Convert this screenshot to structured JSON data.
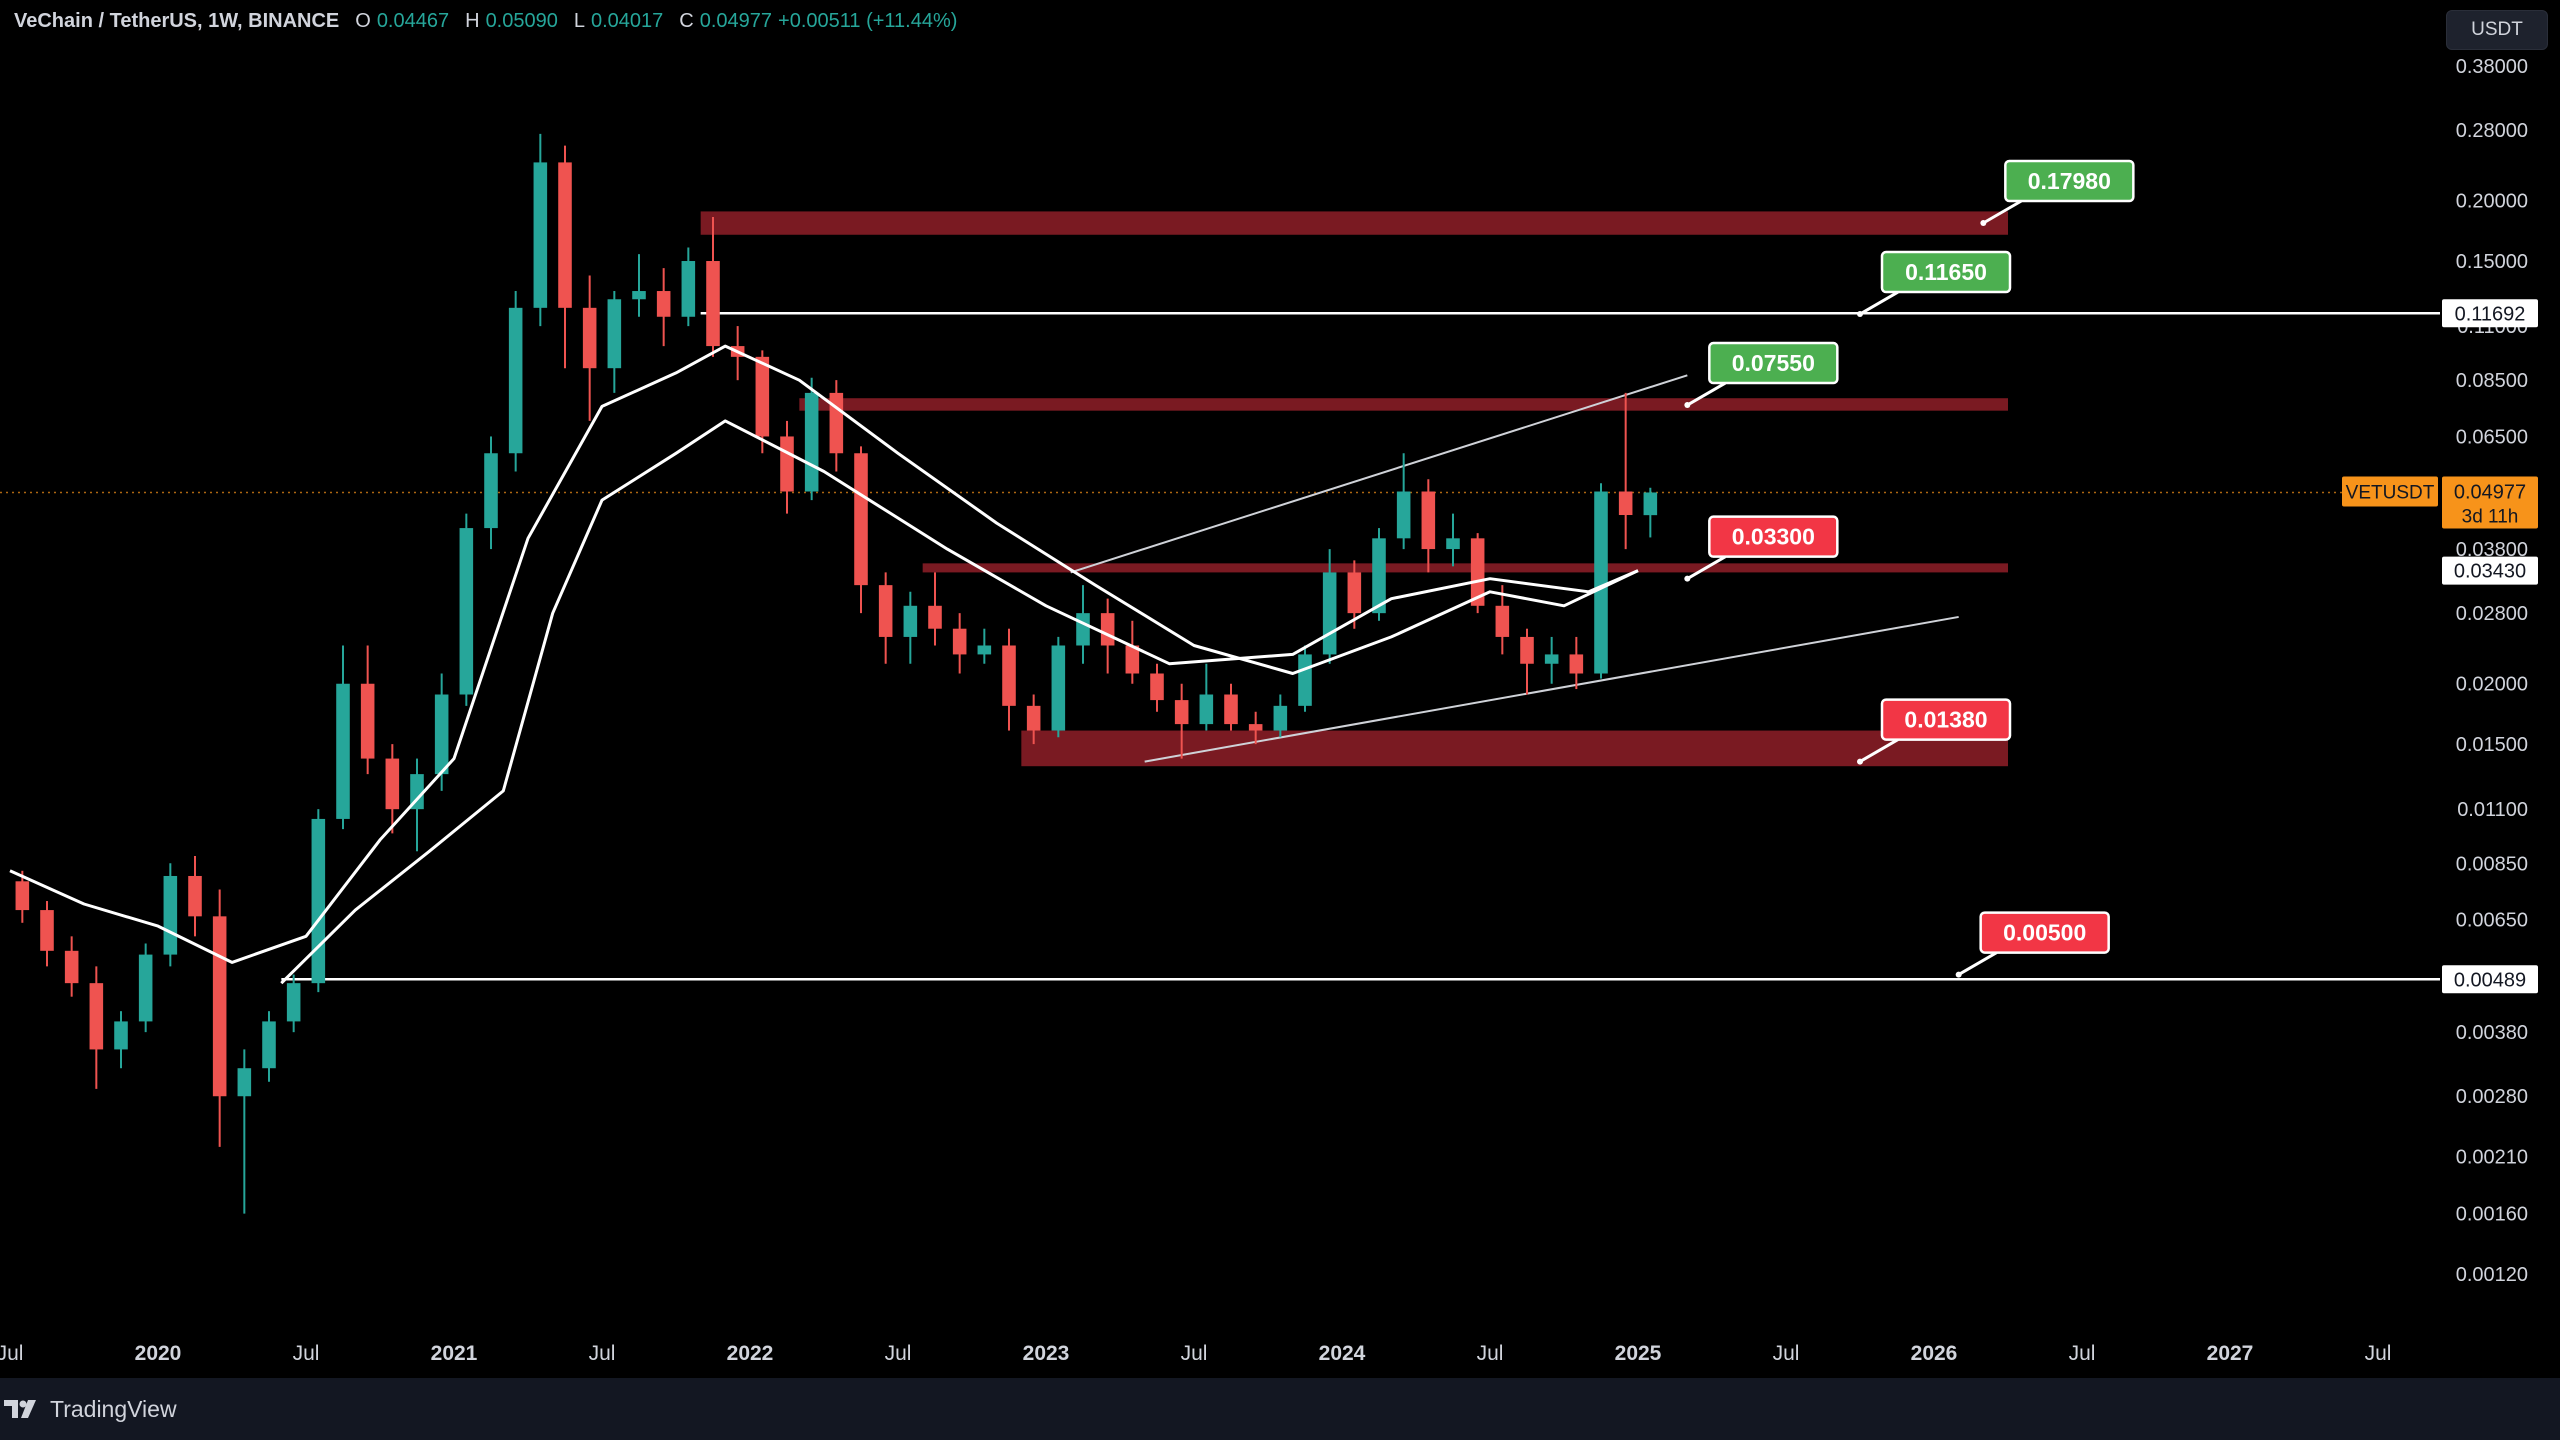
{
  "header": {
    "symbol": "VeChain / TetherUS, 1W, BINANCE",
    "open_label": "O",
    "open": "0.04467",
    "high_label": "H",
    "high": "0.05090",
    "low_label": "L",
    "low": "0.04017",
    "close_label": "C",
    "close": "0.04977",
    "change": "+0.00511 (+11.44%)"
  },
  "currency_button": "USDT",
  "branding": {
    "logo_text": "TradingView",
    "logo_icon": "tradingview-logo-icon"
  },
  "colors": {
    "background": "#000000",
    "zone_fill": "#7a1a22",
    "up_candle": "#26a69a",
    "down_candle": "#ef5350",
    "label_green": "#4caf50",
    "label_red": "#f23645",
    "price_tag_orange": "#f7931a"
  },
  "chart_data": {
    "type": "candlestick",
    "title": "VeChain / TetherUS, 1W, BINANCE",
    "scale": "log",
    "ylim": [
      0.001,
      0.4
    ],
    "y_ticks": [
      "0.38000",
      "0.28000",
      "0.20000",
      "0.15000",
      "0.11000",
      "0.08500",
      "0.06500",
      "0.03800",
      "0.02800",
      "0.02000",
      "0.01500",
      "0.01100",
      "0.00850",
      "0.00650",
      "0.00380",
      "0.00280",
      "0.00210",
      "0.00160",
      "0.00120"
    ],
    "x_ticks": [
      "Jul",
      "2020",
      "Jul",
      "2021",
      "Jul",
      "2022",
      "Jul",
      "2023",
      "Jul",
      "2024",
      "Jul",
      "2025",
      "Jul",
      "2026",
      "Jul",
      "2027",
      "Jul"
    ],
    "grid": false,
    "candles": [
      {
        "date": "2019-07",
        "open": 0.0078,
        "high": 0.0082,
        "low": 0.0064,
        "close": 0.0068
      },
      {
        "date": "2019-08",
        "open": 0.0068,
        "high": 0.0071,
        "low": 0.0052,
        "close": 0.0056
      },
      {
        "date": "2019-09",
        "open": 0.0056,
        "high": 0.006,
        "low": 0.0045,
        "close": 0.0048
      },
      {
        "date": "2019-10",
        "open": 0.0048,
        "high": 0.0052,
        "low": 0.0029,
        "close": 0.0035
      },
      {
        "date": "2019-11",
        "open": 0.0035,
        "high": 0.0042,
        "low": 0.0032,
        "close": 0.004
      },
      {
        "date": "2019-12",
        "open": 0.004,
        "high": 0.0058,
        "low": 0.0038,
        "close": 0.0055
      },
      {
        "date": "2020-01",
        "open": 0.0055,
        "high": 0.0085,
        "low": 0.0052,
        "close": 0.008
      },
      {
        "date": "2020-02",
        "open": 0.008,
        "high": 0.0088,
        "low": 0.006,
        "close": 0.0066
      },
      {
        "date": "2020-03",
        "open": 0.0066,
        "high": 0.0075,
        "low": 0.0022,
        "close": 0.0028
      },
      {
        "date": "2020-04",
        "open": 0.0028,
        "high": 0.0035,
        "low": 0.0016,
        "close": 0.0032
      },
      {
        "date": "2020-05",
        "open": 0.0032,
        "high": 0.0042,
        "low": 0.003,
        "close": 0.004
      },
      {
        "date": "2020-06",
        "open": 0.004,
        "high": 0.005,
        "low": 0.0038,
        "close": 0.0048
      },
      {
        "date": "2020-07",
        "open": 0.0048,
        "high": 0.011,
        "low": 0.0046,
        "close": 0.0105
      },
      {
        "date": "2020-08",
        "open": 0.0105,
        "high": 0.024,
        "low": 0.01,
        "close": 0.02
      },
      {
        "date": "2020-09",
        "open": 0.02,
        "high": 0.024,
        "low": 0.013,
        "close": 0.014
      },
      {
        "date": "2020-10",
        "open": 0.014,
        "high": 0.015,
        "low": 0.0098,
        "close": 0.011
      },
      {
        "date": "2020-11",
        "open": 0.011,
        "high": 0.014,
        "low": 0.009,
        "close": 0.013
      },
      {
        "date": "2020-12",
        "open": 0.013,
        "high": 0.021,
        "low": 0.012,
        "close": 0.019
      },
      {
        "date": "2021-01",
        "open": 0.019,
        "high": 0.045,
        "low": 0.018,
        "close": 0.042
      },
      {
        "date": "2021-02",
        "open": 0.042,
        "high": 0.065,
        "low": 0.038,
        "close": 0.06
      },
      {
        "date": "2021-03",
        "open": 0.06,
        "high": 0.13,
        "low": 0.055,
        "close": 0.12
      },
      {
        "date": "2021-04",
        "open": 0.12,
        "high": 0.275,
        "low": 0.11,
        "close": 0.24
      },
      {
        "date": "2021-05",
        "open": 0.24,
        "high": 0.26,
        "low": 0.09,
        "close": 0.12
      },
      {
        "date": "2021-06",
        "open": 0.12,
        "high": 0.14,
        "low": 0.07,
        "close": 0.09
      },
      {
        "date": "2021-07",
        "open": 0.09,
        "high": 0.13,
        "low": 0.08,
        "close": 0.125
      },
      {
        "date": "2021-08",
        "open": 0.125,
        "high": 0.155,
        "low": 0.115,
        "close": 0.13
      },
      {
        "date": "2021-09",
        "open": 0.13,
        "high": 0.145,
        "low": 0.1,
        "close": 0.115
      },
      {
        "date": "2021-10",
        "open": 0.115,
        "high": 0.16,
        "low": 0.11,
        "close": 0.15
      },
      {
        "date": "2021-11",
        "open": 0.15,
        "high": 0.185,
        "low": 0.095,
        "close": 0.1
      },
      {
        "date": "2021-12",
        "open": 0.1,
        "high": 0.11,
        "low": 0.085,
        "close": 0.095
      },
      {
        "date": "2022-01",
        "open": 0.095,
        "high": 0.098,
        "low": 0.06,
        "close": 0.065
      },
      {
        "date": "2022-02",
        "open": 0.065,
        "high": 0.07,
        "low": 0.045,
        "close": 0.05
      },
      {
        "date": "2022-03",
        "open": 0.05,
        "high": 0.086,
        "low": 0.048,
        "close": 0.08
      },
      {
        "date": "2022-04",
        "open": 0.08,
        "high": 0.085,
        "low": 0.055,
        "close": 0.06
      },
      {
        "date": "2022-05",
        "open": 0.06,
        "high": 0.062,
        "low": 0.028,
        "close": 0.032
      },
      {
        "date": "2022-06",
        "open": 0.032,
        "high": 0.034,
        "low": 0.022,
        "close": 0.025
      },
      {
        "date": "2022-07",
        "open": 0.025,
        "high": 0.031,
        "low": 0.022,
        "close": 0.029
      },
      {
        "date": "2022-08",
        "open": 0.029,
        "high": 0.034,
        "low": 0.024,
        "close": 0.026
      },
      {
        "date": "2022-09",
        "open": 0.026,
        "high": 0.028,
        "low": 0.021,
        "close": 0.023
      },
      {
        "date": "2022-10",
        "open": 0.023,
        "high": 0.026,
        "low": 0.022,
        "close": 0.024
      },
      {
        "date": "2022-11",
        "open": 0.024,
        "high": 0.026,
        "low": 0.016,
        "close": 0.018
      },
      {
        "date": "2022-12",
        "open": 0.018,
        "high": 0.019,
        "low": 0.015,
        "close": 0.016
      },
      {
        "date": "2023-01",
        "open": 0.016,
        "high": 0.025,
        "low": 0.0155,
        "close": 0.024
      },
      {
        "date": "2023-02",
        "open": 0.024,
        "high": 0.032,
        "low": 0.022,
        "close": 0.028
      },
      {
        "date": "2023-03",
        "open": 0.028,
        "high": 0.03,
        "low": 0.021,
        "close": 0.024
      },
      {
        "date": "2023-04",
        "open": 0.024,
        "high": 0.027,
        "low": 0.02,
        "close": 0.021
      },
      {
        "date": "2023-05",
        "open": 0.021,
        "high": 0.022,
        "low": 0.0175,
        "close": 0.0185
      },
      {
        "date": "2023-06",
        "open": 0.0185,
        "high": 0.02,
        "low": 0.014,
        "close": 0.0165
      },
      {
        "date": "2023-07",
        "open": 0.0165,
        "high": 0.022,
        "low": 0.016,
        "close": 0.019
      },
      {
        "date": "2023-08",
        "open": 0.019,
        "high": 0.02,
        "low": 0.016,
        "close": 0.0165
      },
      {
        "date": "2023-09",
        "open": 0.0165,
        "high": 0.0175,
        "low": 0.015,
        "close": 0.016
      },
      {
        "date": "2023-10",
        "open": 0.016,
        "high": 0.019,
        "low": 0.0155,
        "close": 0.018
      },
      {
        "date": "2023-11",
        "open": 0.018,
        "high": 0.024,
        "low": 0.0175,
        "close": 0.023
      },
      {
        "date": "2023-12",
        "open": 0.023,
        "high": 0.038,
        "low": 0.022,
        "close": 0.034
      },
      {
        "date": "2024-01",
        "open": 0.034,
        "high": 0.036,
        "low": 0.026,
        "close": 0.028
      },
      {
        "date": "2024-02",
        "open": 0.028,
        "high": 0.042,
        "low": 0.027,
        "close": 0.04
      },
      {
        "date": "2024-03",
        "open": 0.04,
        "high": 0.06,
        "low": 0.038,
        "close": 0.05
      },
      {
        "date": "2024-04",
        "open": 0.05,
        "high": 0.053,
        "low": 0.034,
        "close": 0.038
      },
      {
        "date": "2024-05",
        "open": 0.038,
        "high": 0.045,
        "low": 0.035,
        "close": 0.04
      },
      {
        "date": "2024-06",
        "open": 0.04,
        "high": 0.041,
        "low": 0.028,
        "close": 0.029
      },
      {
        "date": "2024-07",
        "open": 0.029,
        "high": 0.032,
        "low": 0.023,
        "close": 0.025
      },
      {
        "date": "2024-08",
        "open": 0.025,
        "high": 0.026,
        "low": 0.019,
        "close": 0.022
      },
      {
        "date": "2024-09",
        "open": 0.022,
        "high": 0.025,
        "low": 0.02,
        "close": 0.023
      },
      {
        "date": "2024-10",
        "open": 0.023,
        "high": 0.025,
        "low": 0.0195,
        "close": 0.021
      },
      {
        "date": "2024-11",
        "open": 0.021,
        "high": 0.052,
        "low": 0.0205,
        "close": 0.05
      },
      {
        "date": "2024-12",
        "open": 0.05,
        "high": 0.08,
        "low": 0.038,
        "close": 0.0447
      },
      {
        "date": "2025-01",
        "open": 0.04467,
        "high": 0.0509,
        "low": 0.04017,
        "close": 0.04977
      }
    ],
    "moving_average_1": [
      {
        "date": "2019-07",
        "value": 0.0082
      },
      {
        "date": "2019-10",
        "value": 0.007
      },
      {
        "date": "2020-01",
        "value": 0.0063
      },
      {
        "date": "2020-04",
        "value": 0.0053
      },
      {
        "date": "2020-07",
        "value": 0.006
      },
      {
        "date": "2020-10",
        "value": 0.0095
      },
      {
        "date": "2021-01",
        "value": 0.014
      },
      {
        "date": "2021-04",
        "value": 0.04
      },
      {
        "date": "2021-07",
        "value": 0.075
      },
      {
        "date": "2021-10",
        "value": 0.088
      },
      {
        "date": "2021-12",
        "value": 0.1
      },
      {
        "date": "2022-03",
        "value": 0.085
      },
      {
        "date": "2022-07",
        "value": 0.06
      },
      {
        "date": "2022-11",
        "value": 0.043
      },
      {
        "date": "2023-03",
        "value": 0.032
      },
      {
        "date": "2023-07",
        "value": 0.024
      },
      {
        "date": "2023-11",
        "value": 0.021
      },
      {
        "date": "2024-03",
        "value": 0.025
      },
      {
        "date": "2024-07",
        "value": 0.031
      },
      {
        "date": "2024-10",
        "value": 0.029
      },
      {
        "date": "2025-01",
        "value": 0.0343
      }
    ],
    "moving_average_2": [
      {
        "date": "2020-06",
        "value": 0.0048
      },
      {
        "date": "2020-09",
        "value": 0.0068
      },
      {
        "date": "2020-12",
        "value": 0.009
      },
      {
        "date": "2021-03",
        "value": 0.012
      },
      {
        "date": "2021-05",
        "value": 0.028
      },
      {
        "date": "2021-07",
        "value": 0.048
      },
      {
        "date": "2021-10",
        "value": 0.06
      },
      {
        "date": "2021-12",
        "value": 0.07
      },
      {
        "date": "2022-04",
        "value": 0.055
      },
      {
        "date": "2022-09",
        "value": 0.038
      },
      {
        "date": "2023-01",
        "value": 0.029
      },
      {
        "date": "2023-06",
        "value": 0.022
      },
      {
        "date": "2023-11",
        "value": 0.023
      },
      {
        "date": "2024-03",
        "value": 0.03
      },
      {
        "date": "2024-07",
        "value": 0.033
      },
      {
        "date": "2024-11",
        "value": 0.031
      },
      {
        "date": "2025-01",
        "value": 0.0343
      }
    ],
    "zones": [
      {
        "from": "2021-11",
        "to": "2026-04",
        "low": 0.17,
        "high": 0.19
      },
      {
        "from": "2022-03",
        "to": "2026-04",
        "low": 0.0735,
        "high": 0.078
      },
      {
        "from": "2022-08",
        "to": "2026-04",
        "low": 0.034,
        "high": 0.0355
      },
      {
        "from": "2022-12",
        "to": "2026-04",
        "low": 0.0135,
        "high": 0.016
      }
    ],
    "horizontal_lines": [
      {
        "from": "2021-11",
        "to": "2027-10",
        "value": 0.11692
      },
      {
        "from": "2020-06",
        "to": "2027-10",
        "value": 0.00489
      }
    ],
    "trend_lines": [
      {
        "from": "2023-02",
        "from_value": 0.034,
        "to": "2025-03",
        "to_value": 0.087
      },
      {
        "from": "2023-05",
        "from_value": 0.0138,
        "to": "2026-02",
        "to_value": 0.0275
      }
    ],
    "targets": [
      {
        "label": "0.17980",
        "value": 0.1798,
        "kind": "green",
        "anchor": "2026-03"
      },
      {
        "label": "0.11650",
        "value": 0.1165,
        "kind": "green",
        "anchor": "2025-10"
      },
      {
        "label": "0.07550",
        "value": 0.0755,
        "kind": "green",
        "anchor": "2025-03"
      },
      {
        "label": "0.03300",
        "value": 0.033,
        "kind": "red",
        "anchor": "2025-03"
      },
      {
        "label": "0.01380",
        "value": 0.0138,
        "kind": "red",
        "anchor": "2025-10"
      },
      {
        "label": "0.00500",
        "value": 0.005,
        "kind": "red",
        "anchor": "2026-02"
      }
    ],
    "axis_tags": [
      {
        "label": "0.11692",
        "value": 0.11692,
        "kind": "line"
      },
      {
        "label": "0.03430",
        "value": 0.0343,
        "kind": "line"
      },
      {
        "label": "0.00489",
        "value": 0.00489,
        "kind": "line"
      }
    ],
    "current_price": {
      "symbol": "VETUSDT",
      "price": "0.04977",
      "countdown": "3d 11h",
      "value": 0.04977
    }
  }
}
